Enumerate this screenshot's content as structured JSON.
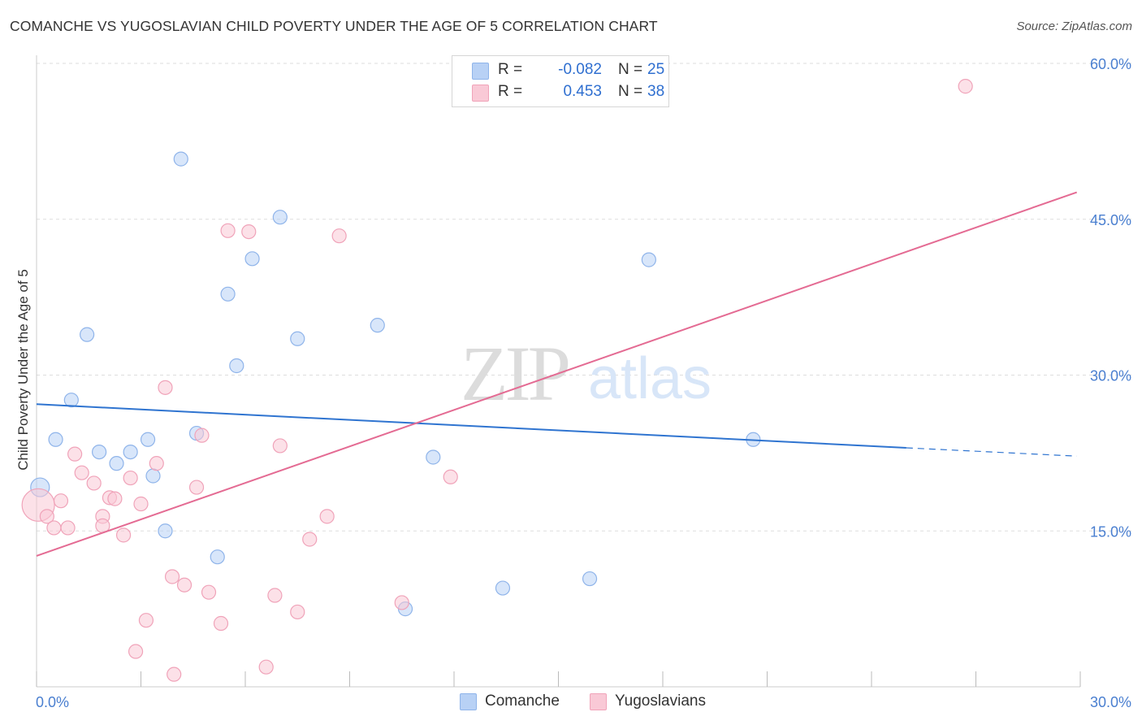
{
  "title": "COMANCHE VS YUGOSLAVIAN CHILD POVERTY UNDER THE AGE OF 5 CORRELATION CHART",
  "source": "Source: ZipAtlas.com",
  "watermark": {
    "zip": "ZIP",
    "atlas": "atlas"
  },
  "colors": {
    "comanche_fill": "#b8d1f5",
    "comanche_stroke": "#8fb4ea",
    "comanche_line": "#2f74d0",
    "yugo_fill": "#f9c9d6",
    "yugo_stroke": "#f0a3b9",
    "yugo_line": "#e46b93",
    "tick_label": "#4a7fd0",
    "grid": "#dddddd"
  },
  "legend_top": {
    "rows": [
      {
        "r_label": "R =",
        "r_value": "-0.082",
        "n_label": "N =",
        "n_value": "25"
      },
      {
        "r_label": "R =",
        "r_value": "0.453",
        "n_label": "N =",
        "n_value": "38"
      }
    ]
  },
  "legend_bottom": [
    "Comanche",
    "Yugoslavians"
  ],
  "chart_data": {
    "type": "scatter",
    "ylabel": "Child Poverty Under the Age of 5",
    "xlabel": "",
    "xlim": [
      0,
      30
    ],
    "ylim": [
      0,
      60
    ],
    "x_tick_labels": [
      {
        "value": 0,
        "label": "0.0%"
      },
      {
        "value": 30,
        "label": "30.0%"
      }
    ],
    "y_tick_labels": [
      {
        "value": 15,
        "label": "15.0%"
      },
      {
        "value": 30,
        "label": "30.0%"
      },
      {
        "value": 45,
        "label": "45.0%"
      },
      {
        "value": 60,
        "label": "60.0%"
      }
    ],
    "grid": true,
    "series": [
      {
        "name": "Comanche",
        "points": [
          [
            0.1,
            19.2
          ],
          [
            1.0,
            27.6
          ],
          [
            0.55,
            23.8
          ],
          [
            1.45,
            33.9
          ],
          [
            1.8,
            22.6
          ],
          [
            2.3,
            21.5
          ],
          [
            2.7,
            22.6
          ],
          [
            3.2,
            23.8
          ],
          [
            3.35,
            20.3
          ],
          [
            3.7,
            15.0
          ],
          [
            4.15,
            50.8
          ],
          [
            4.6,
            24.4
          ],
          [
            5.2,
            12.5
          ],
          [
            5.5,
            37.8
          ],
          [
            5.75,
            30.9
          ],
          [
            6.2,
            41.2
          ],
          [
            7.0,
            45.2
          ],
          [
            7.5,
            33.5
          ],
          [
            9.8,
            34.8
          ],
          [
            10.6,
            7.5
          ],
          [
            11.4,
            22.1
          ],
          [
            13.4,
            9.5
          ],
          [
            15.9,
            10.4
          ],
          [
            17.6,
            41.1
          ],
          [
            20.6,
            23.8
          ]
        ],
        "trend": {
          "x_solid_end": 25.0,
          "x_end": 29.9,
          "y_at_0": 27.2,
          "y_at_solid_end": 23.0,
          "y_at_end": 22.2
        }
      },
      {
        "name": "Yugoslavians",
        "points": [
          [
            0.05,
            17.5
          ],
          [
            0.3,
            16.4
          ],
          [
            0.5,
            15.3
          ],
          [
            0.7,
            17.9
          ],
          [
            0.9,
            15.3
          ],
          [
            1.1,
            22.4
          ],
          [
            1.3,
            20.6
          ],
          [
            1.65,
            19.6
          ],
          [
            1.9,
            16.4
          ],
          [
            2.1,
            18.2
          ],
          [
            2.25,
            18.1
          ],
          [
            2.5,
            14.6
          ],
          [
            2.7,
            20.1
          ],
          [
            3.0,
            17.6
          ],
          [
            3.15,
            6.4
          ],
          [
            3.45,
            21.5
          ],
          [
            3.7,
            28.8
          ],
          [
            3.9,
            10.6
          ],
          [
            4.25,
            9.8
          ],
          [
            4.6,
            19.2
          ],
          [
            4.75,
            24.2
          ],
          [
            4.95,
            9.1
          ],
          [
            5.3,
            6.1
          ],
          [
            5.5,
            43.9
          ],
          [
            6.1,
            43.8
          ],
          [
            6.6,
            1.9
          ],
          [
            6.85,
            8.8
          ],
          [
            7.0,
            23.2
          ],
          [
            7.5,
            7.2
          ],
          [
            7.85,
            14.2
          ],
          [
            8.35,
            16.4
          ],
          [
            8.7,
            43.4
          ],
          [
            10.5,
            8.1
          ],
          [
            11.9,
            20.2
          ],
          [
            2.85,
            3.4
          ],
          [
            3.95,
            1.2
          ],
          [
            1.9,
            15.5
          ],
          [
            26.7,
            57.8
          ]
        ],
        "trend": {
          "x_start": 0,
          "x_end": 29.9,
          "y_at_start": 12.6,
          "y_at_end": 47.6
        }
      }
    ]
  }
}
